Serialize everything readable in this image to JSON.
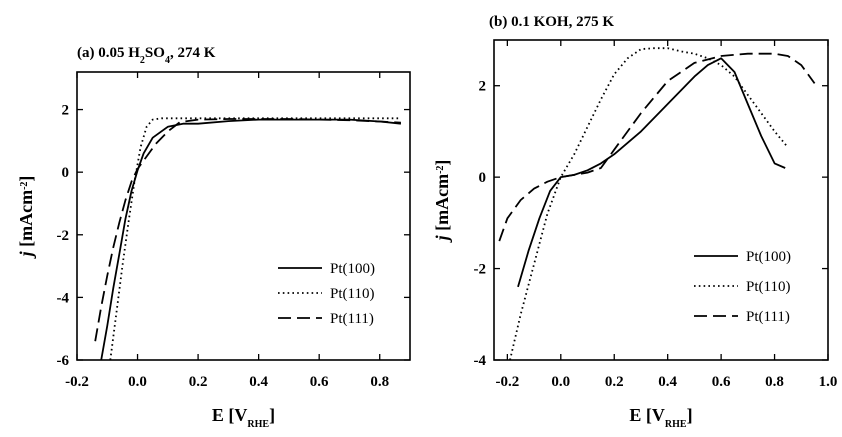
{
  "chart_data": [
    {
      "type": "line",
      "title_parts": [
        "(a) 0.05 H",
        "2",
        "SO",
        "4",
        ", 274 K"
      ],
      "xlabel_parts": [
        "E [V",
        "RHE",
        "]"
      ],
      "ylabel_parts": [
        "j",
        " [mAcm",
        "-2",
        "]"
      ],
      "xlim": [
        -0.2,
        0.9
      ],
      "ylim": [
        -6,
        3.2
      ],
      "xticks": [
        -0.2,
        0.0,
        0.2,
        0.4,
        0.6,
        0.8
      ],
      "xtick_labels": [
        "-0.2",
        "0.0",
        "0.2",
        "0.4",
        "0.6",
        "0.8"
      ],
      "yticks": [
        -6,
        -4,
        -2,
        0,
        2
      ],
      "ytick_labels": [
        "-6",
        "-4",
        "-2",
        "0",
        "2"
      ],
      "legend_position": "lower-right",
      "series": [
        {
          "name": "Pt(100)",
          "style": "solid",
          "x": [
            -0.12,
            -0.1,
            -0.08,
            -0.06,
            -0.04,
            -0.02,
            0.0,
            0.02,
            0.05,
            0.1,
            0.15,
            0.2,
            0.3,
            0.4,
            0.5,
            0.6,
            0.7,
            0.8,
            0.87
          ],
          "y": [
            -6.0,
            -4.9,
            -3.7,
            -2.6,
            -1.5,
            -0.6,
            0.05,
            0.6,
            1.1,
            1.45,
            1.55,
            1.55,
            1.63,
            1.68,
            1.68,
            1.68,
            1.68,
            1.62,
            1.55
          ]
        },
        {
          "name": "Pt(110)",
          "style": "dotted",
          "x": [
            -0.09,
            -0.07,
            -0.05,
            -0.03,
            -0.01,
            0.01,
            0.03,
            0.05,
            0.08,
            0.15,
            0.3,
            0.5,
            0.7,
            0.87
          ],
          "y": [
            -6.0,
            -4.5,
            -3.0,
            -1.6,
            -0.3,
            0.8,
            1.45,
            1.68,
            1.72,
            1.72,
            1.72,
            1.72,
            1.72,
            1.72
          ]
        },
        {
          "name": "Pt(111)",
          "style": "dashed",
          "x": [
            -0.14,
            -0.12,
            -0.1,
            -0.08,
            -0.06,
            -0.04,
            -0.02,
            0.0,
            0.03,
            0.06,
            0.1,
            0.14,
            0.2,
            0.3,
            0.4,
            0.5,
            0.6,
            0.7,
            0.8,
            0.87
          ],
          "y": [
            -5.4,
            -4.3,
            -3.3,
            -2.4,
            -1.6,
            -0.9,
            -0.3,
            0.1,
            0.5,
            0.9,
            1.3,
            1.6,
            1.68,
            1.7,
            1.7,
            1.7,
            1.68,
            1.66,
            1.62,
            1.58
          ]
        }
      ]
    },
    {
      "type": "line",
      "title_parts": [
        "(b) 0.1 KOH, 275 K"
      ],
      "xlabel_parts": [
        "E [V",
        "RHE",
        "]"
      ],
      "ylabel_parts": [
        "j",
        " [mAcm",
        "-2",
        "]"
      ],
      "xlim": [
        -0.25,
        1.0
      ],
      "ylim": [
        -4,
        3.0
      ],
      "xticks": [
        -0.2,
        0.0,
        0.2,
        0.4,
        0.6,
        0.8,
        1.0
      ],
      "xtick_labels": [
        "-0.2",
        "0.0",
        "0.2",
        "0.4",
        "0.6",
        "0.8",
        "1.0"
      ],
      "yticks": [
        -4,
        -2,
        0,
        2
      ],
      "ytick_labels": [
        "-4",
        "-2",
        "0",
        "2"
      ],
      "legend_position": "lower-right",
      "series": [
        {
          "name": "Pt(100)",
          "style": "solid",
          "x": [
            -0.16,
            -0.12,
            -0.08,
            -0.04,
            0.0,
            0.05,
            0.1,
            0.15,
            0.2,
            0.3,
            0.4,
            0.5,
            0.55,
            0.6,
            0.65,
            0.7,
            0.75,
            0.8,
            0.84
          ],
          "y": [
            -2.4,
            -1.6,
            -0.9,
            -0.3,
            0.0,
            0.05,
            0.15,
            0.3,
            0.5,
            1.0,
            1.6,
            2.2,
            2.45,
            2.6,
            2.3,
            1.6,
            0.9,
            0.3,
            0.2
          ]
        },
        {
          "name": "Pt(110)",
          "style": "dotted",
          "x": [
            -0.19,
            -0.15,
            -0.1,
            -0.05,
            0.0,
            0.05,
            0.1,
            0.15,
            0.2,
            0.25,
            0.3,
            0.35,
            0.4,
            0.45,
            0.5,
            0.55,
            0.6,
            0.65,
            0.7,
            0.75,
            0.8,
            0.85
          ],
          "y": [
            -4.0,
            -3.0,
            -1.9,
            -0.8,
            0.0,
            0.5,
            1.1,
            1.7,
            2.25,
            2.6,
            2.8,
            2.82,
            2.82,
            2.75,
            2.7,
            2.6,
            2.45,
            2.2,
            1.8,
            1.4,
            1.0,
            0.65
          ]
        },
        {
          "name": "Pt(111)",
          "style": "dashed",
          "x": [
            -0.23,
            -0.2,
            -0.15,
            -0.1,
            -0.05,
            0.0,
            0.05,
            0.1,
            0.15,
            0.2,
            0.3,
            0.4,
            0.5,
            0.6,
            0.7,
            0.8,
            0.85,
            0.9,
            0.95
          ],
          "y": [
            -1.4,
            -0.9,
            -0.5,
            -0.25,
            -0.1,
            0.0,
            0.05,
            0.1,
            0.2,
            0.6,
            1.4,
            2.1,
            2.5,
            2.65,
            2.7,
            2.7,
            2.65,
            2.45,
            2.05
          ]
        }
      ]
    }
  ]
}
